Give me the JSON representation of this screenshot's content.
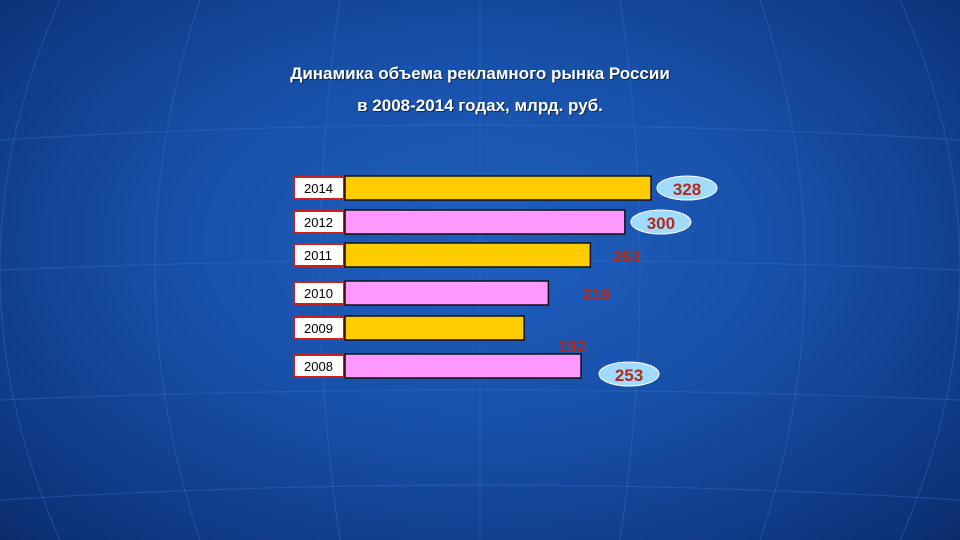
{
  "slide": {
    "title_line1": "Динамика объема рекламного рынка России",
    "title_line2": "в 2008-2014 годах, млрд. руб."
  },
  "colors": {
    "bar_yellow": "#ffcc00",
    "bar_pink": "#ff99ff",
    "label_red": "#b22a1a",
    "year_border": "#cc1f1f",
    "bubble_fill": "#9fdcff"
  },
  "chart_data": {
    "type": "bar",
    "orientation": "horizontal",
    "categories": [
      "2014",
      "2012",
      "2011",
      "2010",
      "2009",
      "2008"
    ],
    "values": [
      328,
      300,
      263,
      218,
      192,
      253
    ],
    "bar_colors": [
      "yellow",
      "pink",
      "yellow",
      "pink",
      "yellow",
      "pink"
    ],
    "bubble_labels": [
      true,
      true,
      false,
      false,
      false,
      true
    ],
    "grid": false,
    "legend": "none"
  }
}
